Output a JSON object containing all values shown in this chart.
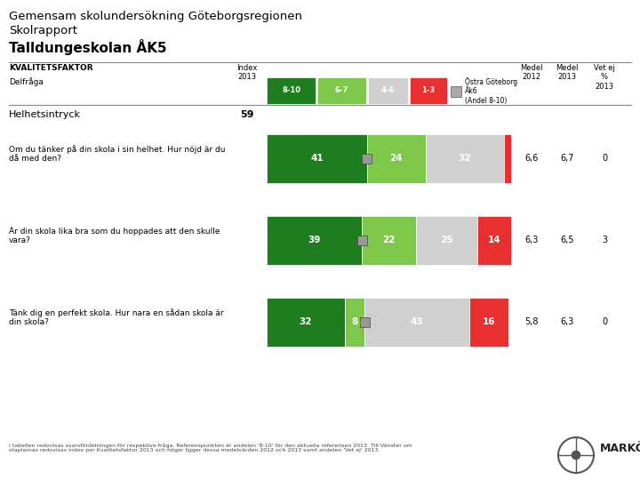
{
  "title_line1": "Gemensam skolundersökning Göteborgsregionen",
  "title_line2": "Skolrapport",
  "title_line3": "Talldungeskolan ÅK5",
  "legend_colors": [
    "#1e7d1e",
    "#7dc84a",
    "#d0d0d0",
    "#e83030"
  ],
  "legend_labels": [
    "8-10",
    "6-7",
    "4-6",
    "1-3"
  ],
  "section_label": "Helhetsintryck",
  "section_index": "59",
  "rows": [
    {
      "label": "Om du tänker på din skola i sin helhet. Hur nöjd är du\ndå med den?",
      "values": [
        41,
        24,
        32,
        3
      ],
      "medel2012": "6,6",
      "medel2013": "6,7",
      "vetej": "0",
      "goteborg_pct": 0.41
    },
    {
      "label": "Är din skola lika bra som du hoppades att den skulle\nvara?",
      "values": [
        39,
        22,
        25,
        14
      ],
      "medel2012": "6,3",
      "medel2013": "6,5",
      "vetej": "3",
      "goteborg_pct": 0.39
    },
    {
      "label": "Tänk dig en perfekt skola. Hur nara en sådan skola är\ndin skola?",
      "values": [
        32,
        8,
        43,
        16
      ],
      "medel2012": "5,8",
      "medel2013": "6,3",
      "vetej": "0",
      "goteborg_pct": 0.4
    }
  ],
  "bar_colors": [
    "#1e7d1e",
    "#7dc84a",
    "#d0d0d0",
    "#e83030"
  ],
  "background_color": "#ffffff",
  "text_color": "#000000",
  "footer_text": "I tabellen redovisas svarsfördelningen för respektive fråga. Referenspunkten är andelen '8-10' för den aktuella referensen 2013. Till Vänster om\nstaplarnas redovisas index per Kvalitetsfaktor 2013 och höger ligger dessa medelvärden 2012 och 2013 samt andelen 'Vet ej' 2013."
}
